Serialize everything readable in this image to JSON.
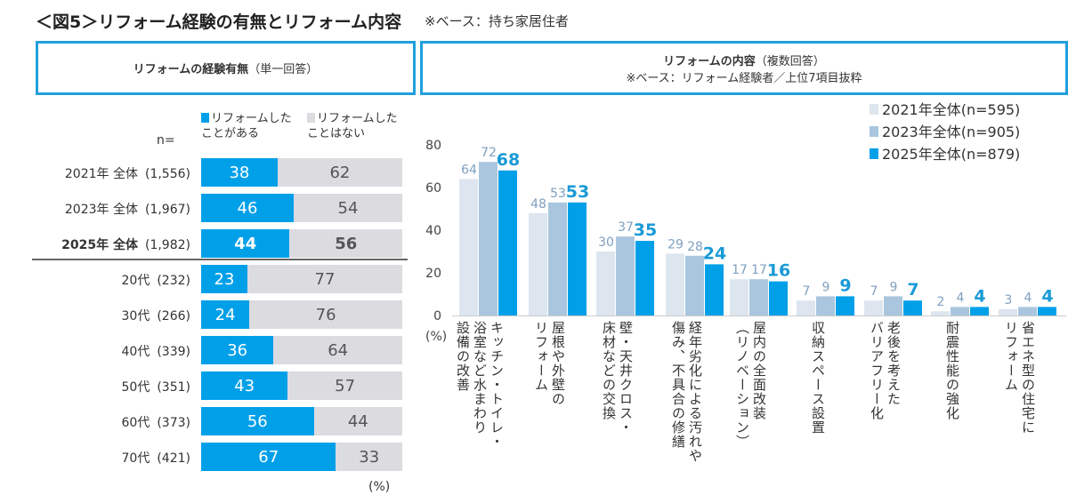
{
  "header": {
    "title": "＜図5＞リフォーム経験の有無とリフォーム内容",
    "subtitle": "※ベース：持ち家居住者"
  },
  "left_panel": {
    "title": "リフォームの経験有無",
    "title_note": "（単一回答）",
    "legend": [
      {
        "label": "リフォームした\nことがある",
        "color": "#00a0e9"
      },
      {
        "label": "リフォームした\nことはない",
        "color": "#dcdbe0"
      }
    ],
    "n_label": "n=",
    "unit": "(%)",
    "rows": [
      {
        "label": "2021年 全体",
        "n": "(1,556)",
        "yes": 38,
        "no": 62,
        "bold": false
      },
      {
        "label": "2023年 全体",
        "n": "(1,967)",
        "yes": 46,
        "no": 54,
        "bold": false
      },
      {
        "label": "2025年 全体",
        "n": "(1,982)",
        "yes": 44,
        "no": 56,
        "bold": true
      },
      {
        "label": "20代",
        "n": "(232)",
        "yes": 23,
        "no": 77,
        "bold": false
      },
      {
        "label": "30代",
        "n": "(266)",
        "yes": 24,
        "no": 76,
        "bold": false
      },
      {
        "label": "40代",
        "n": "(339)",
        "yes": 36,
        "no": 64,
        "bold": false
      },
      {
        "label": "50代",
        "n": "(351)",
        "yes": 43,
        "no": 57,
        "bold": false
      },
      {
        "label": "60代",
        "n": "(373)",
        "yes": 56,
        "no": 44,
        "bold": false
      },
      {
        "label": "70代",
        "n": "(421)",
        "yes": 67,
        "no": 33,
        "bold": false
      }
    ]
  },
  "right_panel": {
    "title": "リフォームの内容",
    "title_note": "（複数回答）",
    "note": "※ベース：リフォーム経験者／上位7項目抜粋"
  },
  "chart_data": {
    "type": "bar",
    "ylabel": "(%)",
    "ylim": [
      0,
      80
    ],
    "yticks": [
      0,
      20,
      40,
      60,
      80
    ],
    "grid": false,
    "legend_position": "top-right",
    "categories": [
      "キッチン・トイレ・\n浴室など水まわり\n設備の改善",
      "屋根や外壁の\nリフォーム",
      "壁・天井クロス・\n床材などの交換",
      "経年劣化による汚れや\n傷み、不具合の修繕",
      "屋内の全面改装\n（リノベーション）",
      "収納スペース設置",
      "老後を考えた\nバリアフリー化",
      "耐震性能の強化",
      "省エネ型の住宅に\nリフォーム"
    ],
    "series": [
      {
        "name": "2021年全体(n=595)",
        "color": "#dde6ef",
        "label_color": "#7f9fbf",
        "values": [
          64,
          48,
          30,
          29,
          17,
          7,
          7,
          2,
          3
        ]
      },
      {
        "name": "2023年全体(n=905)",
        "color": "#a9c6de",
        "label_color": "#7f9fbf",
        "values": [
          72,
          53,
          37,
          28,
          17,
          9,
          9,
          4,
          4
        ]
      },
      {
        "name": "2025年全体(n=879)",
        "color": "#00a0e9",
        "label_color": "#1a9ad6",
        "values": [
          68,
          53,
          35,
          24,
          16,
          9,
          7,
          4,
          4
        ]
      }
    ]
  }
}
